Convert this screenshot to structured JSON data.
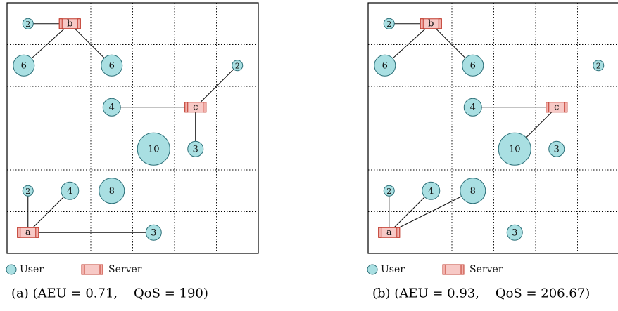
{
  "legend": {
    "user_label": "User",
    "server_label": "Server"
  },
  "panels": [
    {
      "caption": "(a) (AEU = 0.71,    QoS = 190)",
      "servers": [
        {
          "id": "b",
          "label": "b",
          "col": 1.5,
          "row": 0.5
        },
        {
          "id": "c",
          "label": "c",
          "col": 4.5,
          "row": 2.5
        },
        {
          "id": "a",
          "label": "a",
          "col": 0.5,
          "row": 5.5
        }
      ],
      "users": [
        {
          "id": "u1",
          "w": "2",
          "col": 0.5,
          "row": 0.5
        },
        {
          "id": "u2",
          "w": "6",
          "col": 0.4,
          "row": 1.5
        },
        {
          "id": "u3",
          "w": "6",
          "col": 2.5,
          "row": 1.5
        },
        {
          "id": "u4",
          "w": "2",
          "col": 5.5,
          "row": 1.5
        },
        {
          "id": "u5",
          "w": "4",
          "col": 2.5,
          "row": 2.5
        },
        {
          "id": "u6",
          "w": "10",
          "col": 3.5,
          "row": 3.5
        },
        {
          "id": "u7",
          "w": "3",
          "col": 4.5,
          "row": 3.5
        },
        {
          "id": "u8",
          "w": "2",
          "col": 0.5,
          "row": 4.5
        },
        {
          "id": "u9",
          "w": "4",
          "col": 1.5,
          "row": 4.5
        },
        {
          "id": "u10",
          "w": "8",
          "col": 2.5,
          "row": 4.5
        },
        {
          "id": "u11",
          "w": "3",
          "col": 3.5,
          "row": 5.5
        }
      ],
      "links": [
        [
          "u1",
          "b"
        ],
        [
          "u2",
          "b"
        ],
        [
          "u3",
          "b"
        ],
        [
          "u4",
          "c"
        ],
        [
          "u5",
          "c"
        ],
        [
          "u7",
          "c"
        ],
        [
          "u8",
          "a"
        ],
        [
          "u9",
          "a"
        ],
        [
          "u11",
          "a"
        ]
      ]
    },
    {
      "caption": "(b) (AEU = 0.93,    QoS = 206.67)",
      "servers": [
        {
          "id": "b",
          "label": "b",
          "col": 1.5,
          "row": 0.5
        },
        {
          "id": "c",
          "label": "c",
          "col": 4.5,
          "row": 2.5
        },
        {
          "id": "a",
          "label": "a",
          "col": 0.5,
          "row": 5.5
        }
      ],
      "users": [
        {
          "id": "u1",
          "w": "2",
          "col": 0.5,
          "row": 0.5
        },
        {
          "id": "u2",
          "w": "6",
          "col": 0.4,
          "row": 1.5
        },
        {
          "id": "u3",
          "w": "6",
          "col": 2.5,
          "row": 1.5
        },
        {
          "id": "u4",
          "w": "2",
          "col": 5.5,
          "row": 1.5
        },
        {
          "id": "u5",
          "w": "4",
          "col": 2.5,
          "row": 2.5
        },
        {
          "id": "u6",
          "w": "10",
          "col": 3.5,
          "row": 3.5
        },
        {
          "id": "u7",
          "w": "3",
          "col": 4.5,
          "row": 3.5
        },
        {
          "id": "u8",
          "w": "2",
          "col": 0.5,
          "row": 4.5
        },
        {
          "id": "u9",
          "w": "4",
          "col": 1.5,
          "row": 4.5
        },
        {
          "id": "u10",
          "w": "8",
          "col": 2.5,
          "row": 4.5
        },
        {
          "id": "u11",
          "w": "3",
          "col": 3.5,
          "row": 5.5
        }
      ],
      "links": [
        [
          "u1",
          "b"
        ],
        [
          "u2",
          "b"
        ],
        [
          "u3",
          "b"
        ],
        [
          "u5",
          "c"
        ],
        [
          "u6",
          "c"
        ],
        [
          "u8",
          "a"
        ],
        [
          "u9",
          "a"
        ],
        [
          "u10",
          "a"
        ]
      ]
    }
  ]
}
